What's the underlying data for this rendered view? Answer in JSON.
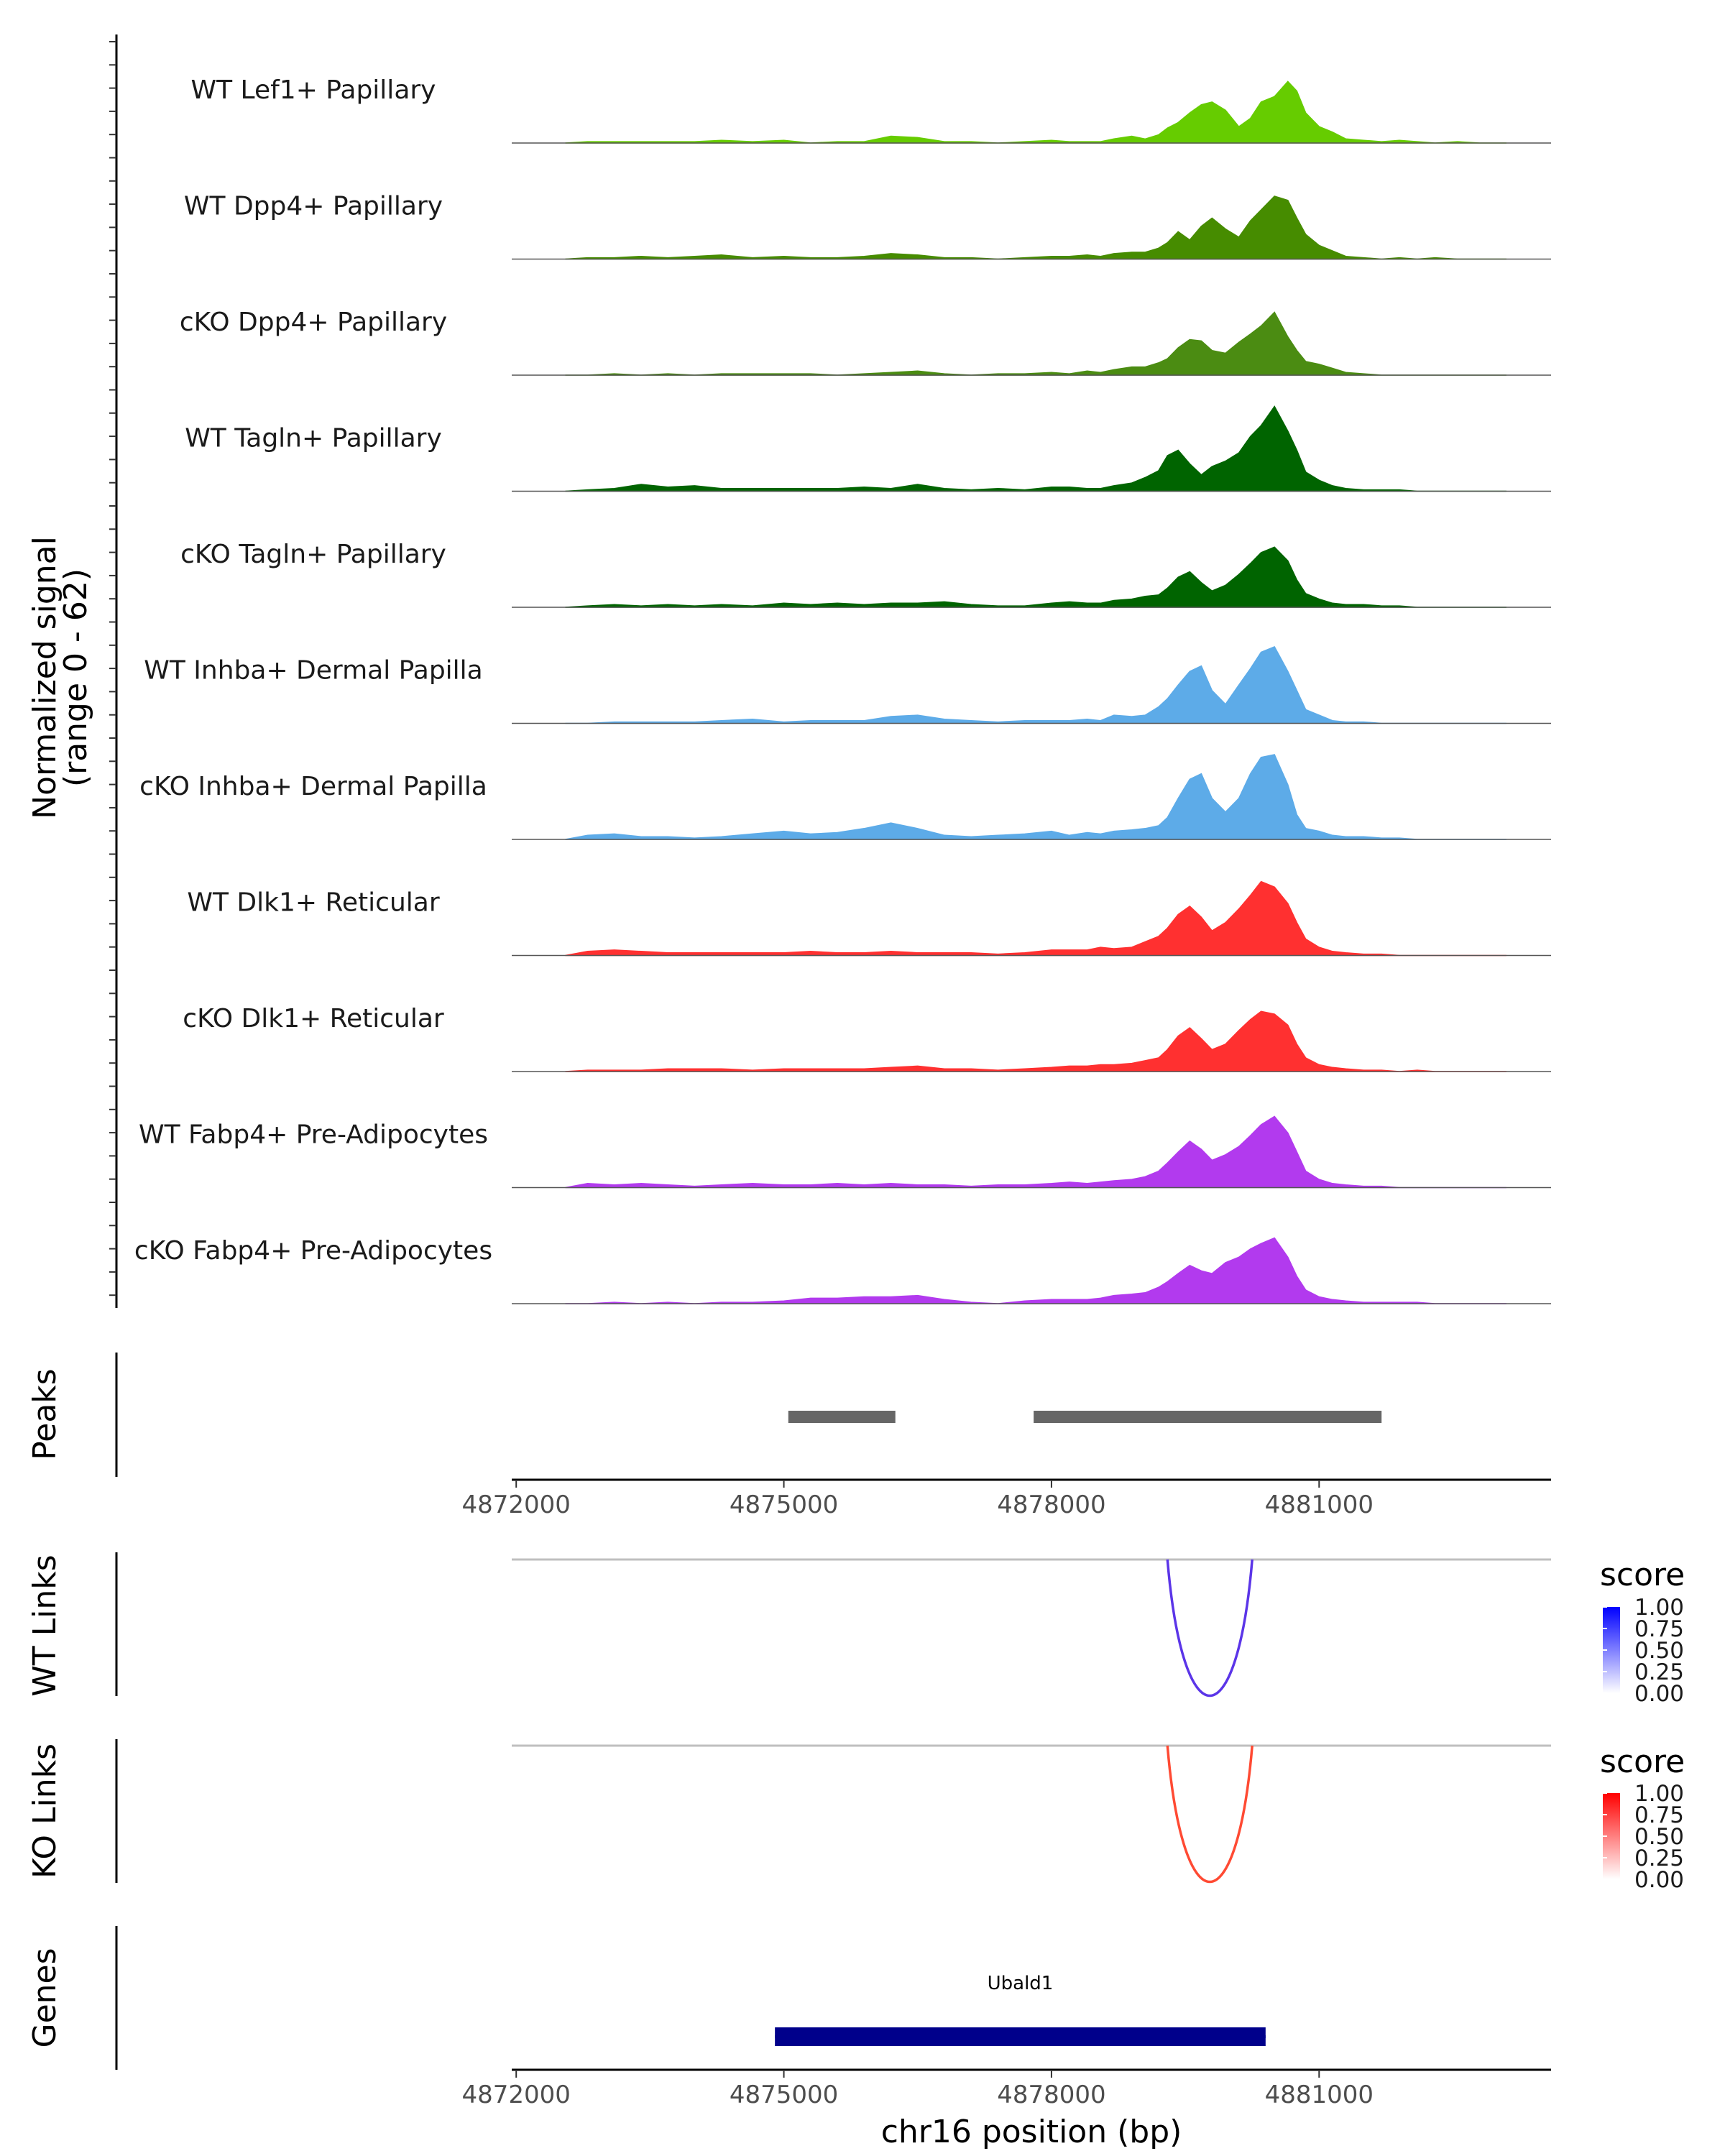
{
  "chart_data": {
    "type": "area",
    "title": "",
    "ylabel": "Normalized signal",
    "ylabel_range": "(range 0 - 62)",
    "xlabel": "chr16 position (bp)",
    "xlim": [
      4871950,
      4883600
    ],
    "ylim": [
      0,
      62
    ],
    "x_ticks": [
      "4872000",
      "4875000",
      "4878000",
      "4881000"
    ],
    "x_tick_values": [
      4872000,
      4875000,
      4878000,
      4881000
    ],
    "coverage_x": [
      4872550,
      4872800,
      4873100,
      4873400,
      4873700,
      4874000,
      4874300,
      4874650,
      4875000,
      4875300,
      4875600,
      4875900,
      4876200,
      4876500,
      4876800,
      4877100,
      4877400,
      4877700,
      4878000,
      4878200,
      4878400,
      4878550,
      4878700,
      4878900,
      4879050,
      4879200,
      4879300,
      4879420,
      4879550,
      4879680,
      4879800,
      4879950,
      4880100,
      4880230,
      4880350,
      4880500,
      4880650,
      4880750,
      4880850,
      4881000,
      4881150,
      4881300,
      4881500,
      4881700,
      4881900,
      4882100,
      4882300,
      4882550,
      4882800,
      4883100
    ],
    "series": [
      {
        "name": "WT Lef1+ Papillary",
        "color": "#66CC00",
        "values": [
          0,
          1,
          1,
          1,
          1,
          1,
          2,
          1,
          2,
          0,
          1,
          1,
          5,
          4,
          1,
          1,
          0,
          1,
          2,
          1,
          1,
          1,
          3,
          5,
          3,
          6,
          11,
          15,
          22,
          28,
          30,
          24,
          12,
          18,
          30,
          34,
          45,
          38,
          22,
          12,
          8,
          3,
          2,
          1,
          2,
          1,
          0,
          1,
          0,
          0
        ]
      },
      {
        "name": "WT Dpp4+ Papillary",
        "color": "#468C00",
        "values": [
          0,
          1,
          1,
          2,
          1,
          2,
          3,
          1,
          2,
          1,
          1,
          2,
          4,
          3,
          1,
          1,
          0,
          1,
          2,
          2,
          3,
          2,
          4,
          5,
          5,
          8,
          12,
          20,
          14,
          24,
          30,
          22,
          16,
          28,
          36,
          46,
          43,
          30,
          18,
          10,
          6,
          2,
          1,
          0,
          1,
          0,
          1,
          0,
          0,
          0
        ]
      },
      {
        "name": "cKO Dpp4+ Papillary",
        "color": "#4B8C12",
        "values": [
          0,
          0,
          1,
          0,
          1,
          0,
          1,
          1,
          1,
          1,
          0,
          1,
          2,
          3,
          1,
          0,
          1,
          1,
          2,
          1,
          3,
          2,
          4,
          6,
          6,
          9,
          12,
          20,
          26,
          25,
          18,
          16,
          24,
          30,
          36,
          46,
          28,
          18,
          10,
          8,
          5,
          2,
          1,
          0,
          0,
          0,
          0,
          0,
          0,
          0
        ]
      },
      {
        "name": "WT Tagln+ Papillary",
        "color": "#006400",
        "values": [
          0,
          1,
          2,
          5,
          3,
          4,
          2,
          2,
          2,
          2,
          2,
          3,
          2,
          5,
          2,
          1,
          2,
          1,
          3,
          3,
          2,
          2,
          4,
          6,
          10,
          15,
          26,
          30,
          20,
          12,
          18,
          22,
          28,
          40,
          48,
          62,
          44,
          30,
          14,
          8,
          4,
          2,
          1,
          1,
          1,
          0,
          0,
          0,
          0,
          0
        ]
      },
      {
        "name": "cKO Tagln+ Papillary",
        "color": "#006400",
        "values": [
          0,
          1,
          2,
          1,
          2,
          1,
          2,
          1,
          3,
          2,
          3,
          2,
          3,
          3,
          4,
          2,
          1,
          1,
          3,
          4,
          3,
          3,
          5,
          6,
          8,
          9,
          14,
          22,
          26,
          18,
          12,
          16,
          24,
          32,
          40,
          44,
          34,
          20,
          10,
          6,
          3,
          2,
          2,
          1,
          1,
          0,
          0,
          0,
          0,
          0
        ]
      },
      {
        "name": "WT Inhba+ Dermal Papilla",
        "color": "#5DABE8",
        "values": [
          0,
          0,
          1,
          1,
          1,
          1,
          2,
          3,
          1,
          2,
          2,
          2,
          5,
          6,
          3,
          2,
          1,
          2,
          2,
          2,
          3,
          2,
          6,
          5,
          6,
          12,
          18,
          28,
          38,
          42,
          24,
          14,
          28,
          40,
          52,
          56,
          38,
          24,
          10,
          6,
          2,
          1,
          1,
          0,
          0,
          0,
          0,
          0,
          0,
          0
        ]
      },
      {
        "name": "cKO Inhba+ Dermal Papilla",
        "color": "#5DABE8",
        "values": [
          0,
          3,
          4,
          2,
          2,
          1,
          2,
          4,
          6,
          4,
          5,
          8,
          12,
          8,
          3,
          2,
          3,
          4,
          6,
          3,
          5,
          4,
          6,
          7,
          8,
          10,
          16,
          30,
          44,
          48,
          30,
          20,
          30,
          48,
          60,
          62,
          40,
          18,
          8,
          6,
          3,
          2,
          2,
          1,
          1,
          0,
          0,
          0,
          0,
          0
        ]
      },
      {
        "name": "WT Dlk1+ Reticular",
        "color": "#FF3030",
        "values": [
          0,
          3,
          4,
          3,
          2,
          2,
          2,
          2,
          2,
          3,
          2,
          2,
          3,
          2,
          2,
          2,
          1,
          2,
          4,
          4,
          4,
          6,
          5,
          6,
          10,
          14,
          20,
          30,
          36,
          28,
          18,
          24,
          34,
          44,
          54,
          50,
          38,
          24,
          12,
          6,
          3,
          2,
          1,
          1,
          0,
          0,
          0,
          0,
          0,
          0
        ]
      },
      {
        "name": "cKO Dlk1+ Reticular",
        "color": "#FF3030",
        "values": [
          0,
          1,
          1,
          1,
          2,
          2,
          2,
          1,
          2,
          2,
          2,
          2,
          3,
          4,
          2,
          2,
          1,
          2,
          3,
          4,
          4,
          5,
          5,
          6,
          8,
          10,
          16,
          26,
          32,
          24,
          16,
          20,
          30,
          38,
          44,
          42,
          34,
          20,
          10,
          5,
          3,
          2,
          1,
          1,
          0,
          1,
          0,
          0,
          0,
          0
        ]
      },
      {
        "name": "WT Fabp4+ Pre-Adipocytes",
        "color": "#B23AEE",
        "values": [
          0,
          3,
          2,
          3,
          2,
          1,
          2,
          3,
          2,
          2,
          3,
          2,
          3,
          2,
          2,
          1,
          2,
          2,
          3,
          4,
          3,
          4,
          5,
          6,
          8,
          12,
          18,
          26,
          34,
          28,
          20,
          24,
          30,
          38,
          46,
          52,
          40,
          26,
          12,
          6,
          3,
          2,
          1,
          1,
          0,
          0,
          0,
          0,
          0,
          0
        ]
      },
      {
        "name": "cKO Fabp4+ Pre-Adipocytes",
        "color": "#B23AEE",
        "values": [
          0,
          0,
          1,
          0,
          1,
          0,
          1,
          1,
          2,
          4,
          4,
          5,
          5,
          6,
          3,
          1,
          0,
          2,
          3,
          3,
          3,
          4,
          6,
          7,
          8,
          12,
          16,
          22,
          28,
          24,
          22,
          30,
          34,
          40,
          44,
          48,
          34,
          20,
          10,
          5,
          3,
          2,
          1,
          1,
          1,
          1,
          0,
          0,
          0,
          0
        ]
      }
    ],
    "peaks": {
      "label": "Peaks",
      "color": "#666666",
      "regions": [
        {
          "start": 4875050,
          "end": 4876250
        },
        {
          "start": 4877800,
          "end": 4881700
        }
      ]
    },
    "links": [
      {
        "label": "WT Links",
        "color": "#5B35E8",
        "start": 4879300,
        "end": 4880250,
        "score": 1.0,
        "legend": {
          "title": "score",
          "ticks": [
            "1.00",
            "0.75",
            "0.50",
            "0.25",
            "0.00"
          ],
          "low": "#FFFFFF",
          "high": "#0000FF"
        }
      },
      {
        "label": "KO Links",
        "color": "#FF4A33",
        "start": 4879300,
        "end": 4880250,
        "score": 1.0,
        "legend": {
          "title": "score",
          "ticks": [
            "1.00",
            "0.75",
            "0.50",
            "0.25",
            "0.00"
          ],
          "low": "#FFFFFF",
          "high": "#FF0000"
        }
      }
    ],
    "genes": {
      "label": "Genes",
      "color": "#00008B",
      "items": [
        {
          "name": "Ubald1",
          "start": 4874900,
          "end": 4880400
        }
      ]
    }
  }
}
